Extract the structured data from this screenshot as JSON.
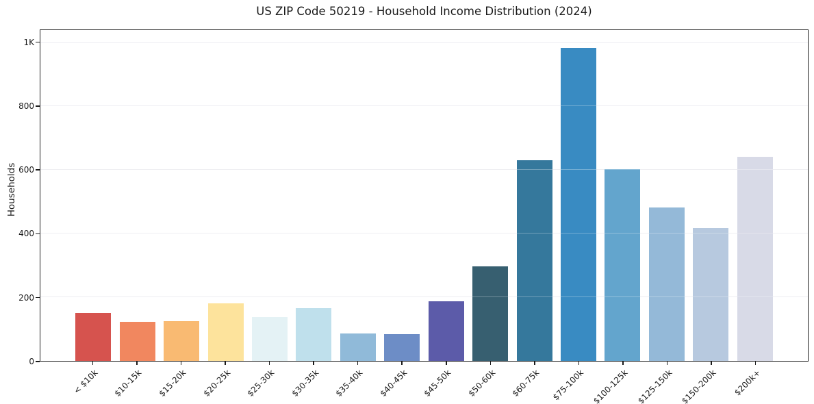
{
  "title": "US ZIP Code 50219 - Household Income Distribution (2024)",
  "chart_data": {
    "type": "bar",
    "title": "US ZIP Code 50219 - Household Income Distribution (2024)",
    "xlabel": "",
    "ylabel": "Households",
    "categories": [
      "< $10k",
      "$10-15k",
      "$15-20k",
      "$20-25k",
      "$25-30k",
      "$30-35k",
      "$35-40k",
      "$40-45k",
      "$45-50k",
      "$50-60k",
      "$60-75k",
      "$75-100k",
      "$100-125k",
      "$125-150k",
      "$150-200k",
      "$200k+"
    ],
    "values": [
      150,
      122,
      125,
      181,
      137,
      166,
      87,
      83,
      188,
      298,
      630,
      985,
      602,
      483,
      417,
      641
    ],
    "bar_colors": [
      "#d6534e",
      "#f1875f",
      "#f9ba72",
      "#fde39c",
      "#e4f2f5",
      "#bfe0ec",
      "#90bad9",
      "#6d8dc6",
      "#5c5ba9",
      "#375f70",
      "#35789c",
      "#398bc2",
      "#63a5cd",
      "#94b9d8",
      "#b7c9df",
      "#d8dae7"
    ],
    "yticks": [
      {
        "label": "0",
        "value": 0
      },
      {
        "label": "200",
        "value": 200
      },
      {
        "label": "400",
        "value": 400
      },
      {
        "label": "600",
        "value": 600
      },
      {
        "label": "800",
        "value": 800
      },
      {
        "label": "1K",
        "value": 1000
      }
    ],
    "ylim": [
      0,
      1040
    ],
    "grid": "horizontal",
    "legend_position": "none"
  },
  "colors": {
    "background": "#ffffff",
    "spine": "#1a1a1a",
    "grid": "#e7e7ec",
    "text": "#1a1a1a"
  }
}
